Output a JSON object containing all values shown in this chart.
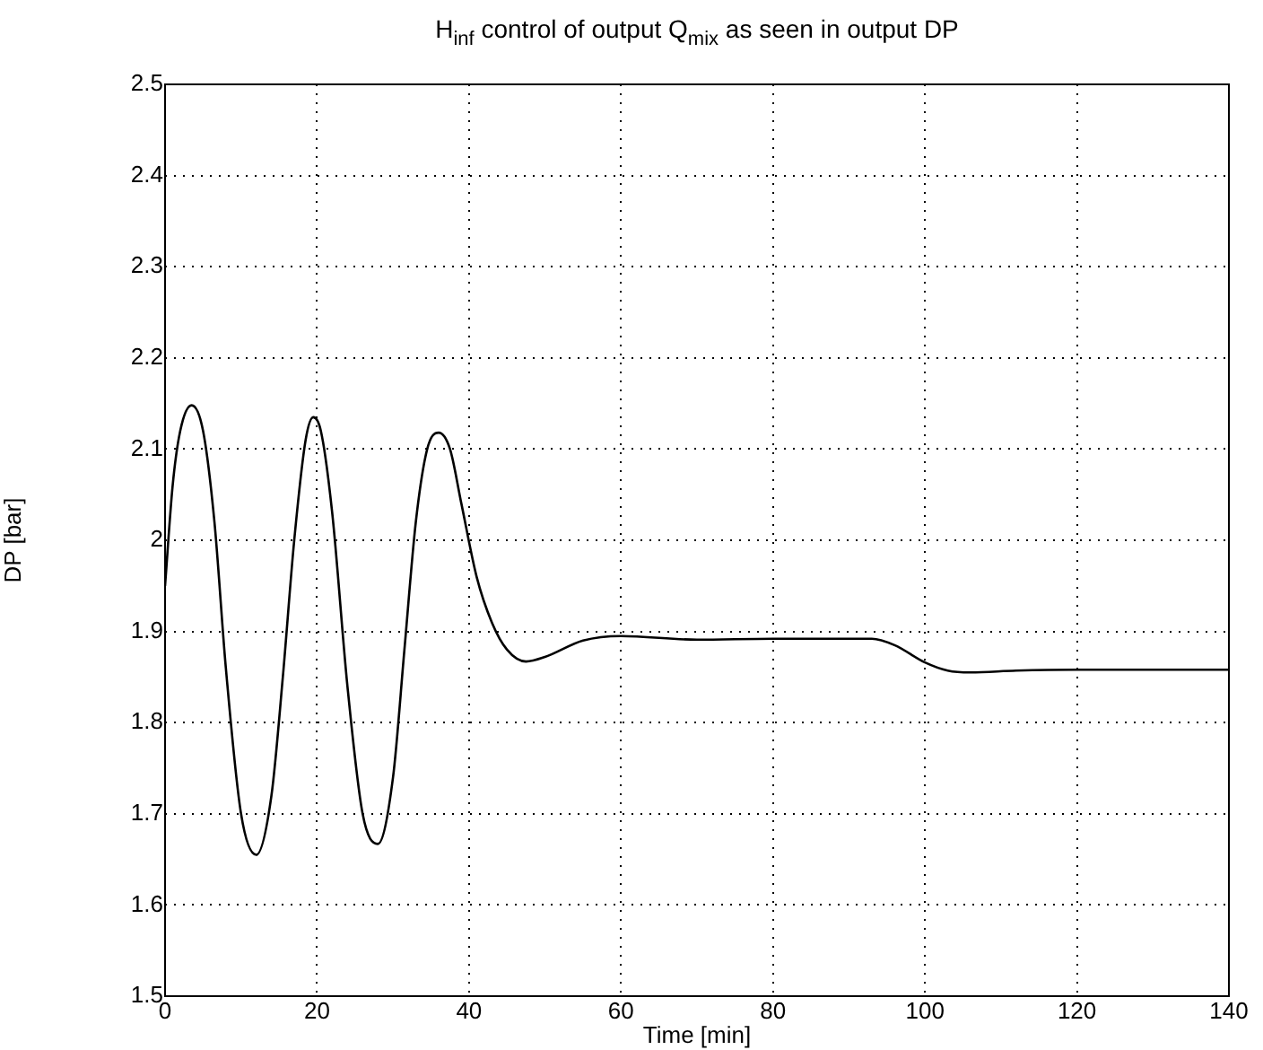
{
  "chart_data": {
    "type": "line",
    "title": "H$_{inf}$ control of output Q$_{mix}$ as seen in output DP",
    "xlabel": "Time [min]",
    "ylabel": "DP [bar]",
    "x": [
      0,
      1,
      2,
      3.5,
      5,
      6.5,
      8,
      10,
      12,
      14,
      15.5,
      17,
      18.5,
      19.5,
      20.5,
      22,
      24,
      26,
      28,
      30,
      31.5,
      33,
      34.5,
      36,
      37.5,
      39,
      41,
      43,
      45,
      47.5,
      50,
      55,
      60,
      70,
      80,
      93,
      96,
      100,
      103,
      106,
      112,
      120,
      140
    ],
    "series": [
      {
        "color": "#000000",
        "values": [
          1.95,
          2.06,
          2.12,
          2.148,
          2.12,
          2.02,
          1.86,
          1.7,
          1.655,
          1.72,
          1.85,
          2.0,
          2.11,
          2.135,
          2.12,
          2.03,
          1.84,
          1.7,
          1.667,
          1.74,
          1.88,
          2.02,
          2.1,
          2.118,
          2.1,
          2.04,
          1.96,
          1.91,
          1.88,
          1.867,
          1.872,
          1.89,
          1.895,
          1.891,
          1.892,
          1.892,
          1.885,
          1.866,
          1.857,
          1.855,
          1.857,
          1.858,
          1.858
        ]
      }
    ],
    "xlim": [
      0,
      140
    ],
    "xticks": [
      0,
      20,
      40,
      60,
      80,
      100,
      120,
      140
    ],
    "ylim": [
      1.5,
      2.5
    ],
    "yticks": [
      1.5,
      1.6,
      1.7,
      1.8,
      1.9,
      2,
      2.1,
      2.2,
      2.3,
      2.4,
      2.5
    ],
    "grid": true,
    "legend": false,
    "marker": "none",
    "line_style": "solid"
  }
}
